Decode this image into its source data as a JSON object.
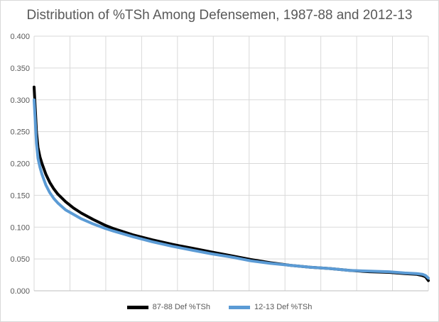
{
  "chart_data": {
    "type": "line",
    "title": "Distribution of %TSh Among Defensemen, 1987-88 and 2012-13",
    "xlabel": "",
    "ylabel": "",
    "ylim": [
      0,
      0.4
    ],
    "y_ticks": [
      "0.000",
      "0.050",
      "0.100",
      "0.150",
      "0.200",
      "0.250",
      "0.300",
      "0.350",
      "0.400"
    ],
    "x_gridlines": 11,
    "grid": true,
    "legend_position": "bottom",
    "series": [
      {
        "name": "87-88 Def %TSh",
        "color": "#000000",
        "x": [
          0,
          0.003,
          0.006,
          0.01,
          0.015,
          0.02,
          0.03,
          0.04,
          0.05,
          0.06,
          0.08,
          0.1,
          0.12,
          0.15,
          0.18,
          0.2,
          0.25,
          0.3,
          0.35,
          0.4,
          0.45,
          0.5,
          0.55,
          0.6,
          0.65,
          0.7,
          0.75,
          0.8,
          0.85,
          0.9,
          0.94,
          0.97,
          0.985,
          0.993,
          1.0
        ],
        "values": [
          0.32,
          0.285,
          0.25,
          0.225,
          0.21,
          0.2,
          0.183,
          0.17,
          0.16,
          0.152,
          0.14,
          0.13,
          0.122,
          0.112,
          0.103,
          0.098,
          0.088,
          0.08,
          0.073,
          0.067,
          0.061,
          0.055,
          0.049,
          0.044,
          0.04,
          0.037,
          0.035,
          0.032,
          0.03,
          0.029,
          0.027,
          0.026,
          0.024,
          0.022,
          0.016
        ]
      },
      {
        "name": "12-13 Def %TSh",
        "color": "#5b9bd5",
        "x": [
          0,
          0.003,
          0.006,
          0.01,
          0.015,
          0.02,
          0.03,
          0.04,
          0.05,
          0.06,
          0.08,
          0.1,
          0.12,
          0.15,
          0.18,
          0.2,
          0.25,
          0.3,
          0.35,
          0.4,
          0.45,
          0.5,
          0.55,
          0.6,
          0.65,
          0.7,
          0.75,
          0.8,
          0.85,
          0.9,
          0.94,
          0.97,
          0.985,
          0.993,
          1.0
        ],
        "values": [
          0.3,
          0.265,
          0.232,
          0.208,
          0.194,
          0.183,
          0.166,
          0.154,
          0.145,
          0.138,
          0.127,
          0.12,
          0.113,
          0.105,
          0.098,
          0.094,
          0.085,
          0.077,
          0.07,
          0.064,
          0.058,
          0.053,
          0.047,
          0.043,
          0.04,
          0.037,
          0.035,
          0.032,
          0.031,
          0.03,
          0.028,
          0.027,
          0.026,
          0.024,
          0.02
        ]
      }
    ]
  }
}
